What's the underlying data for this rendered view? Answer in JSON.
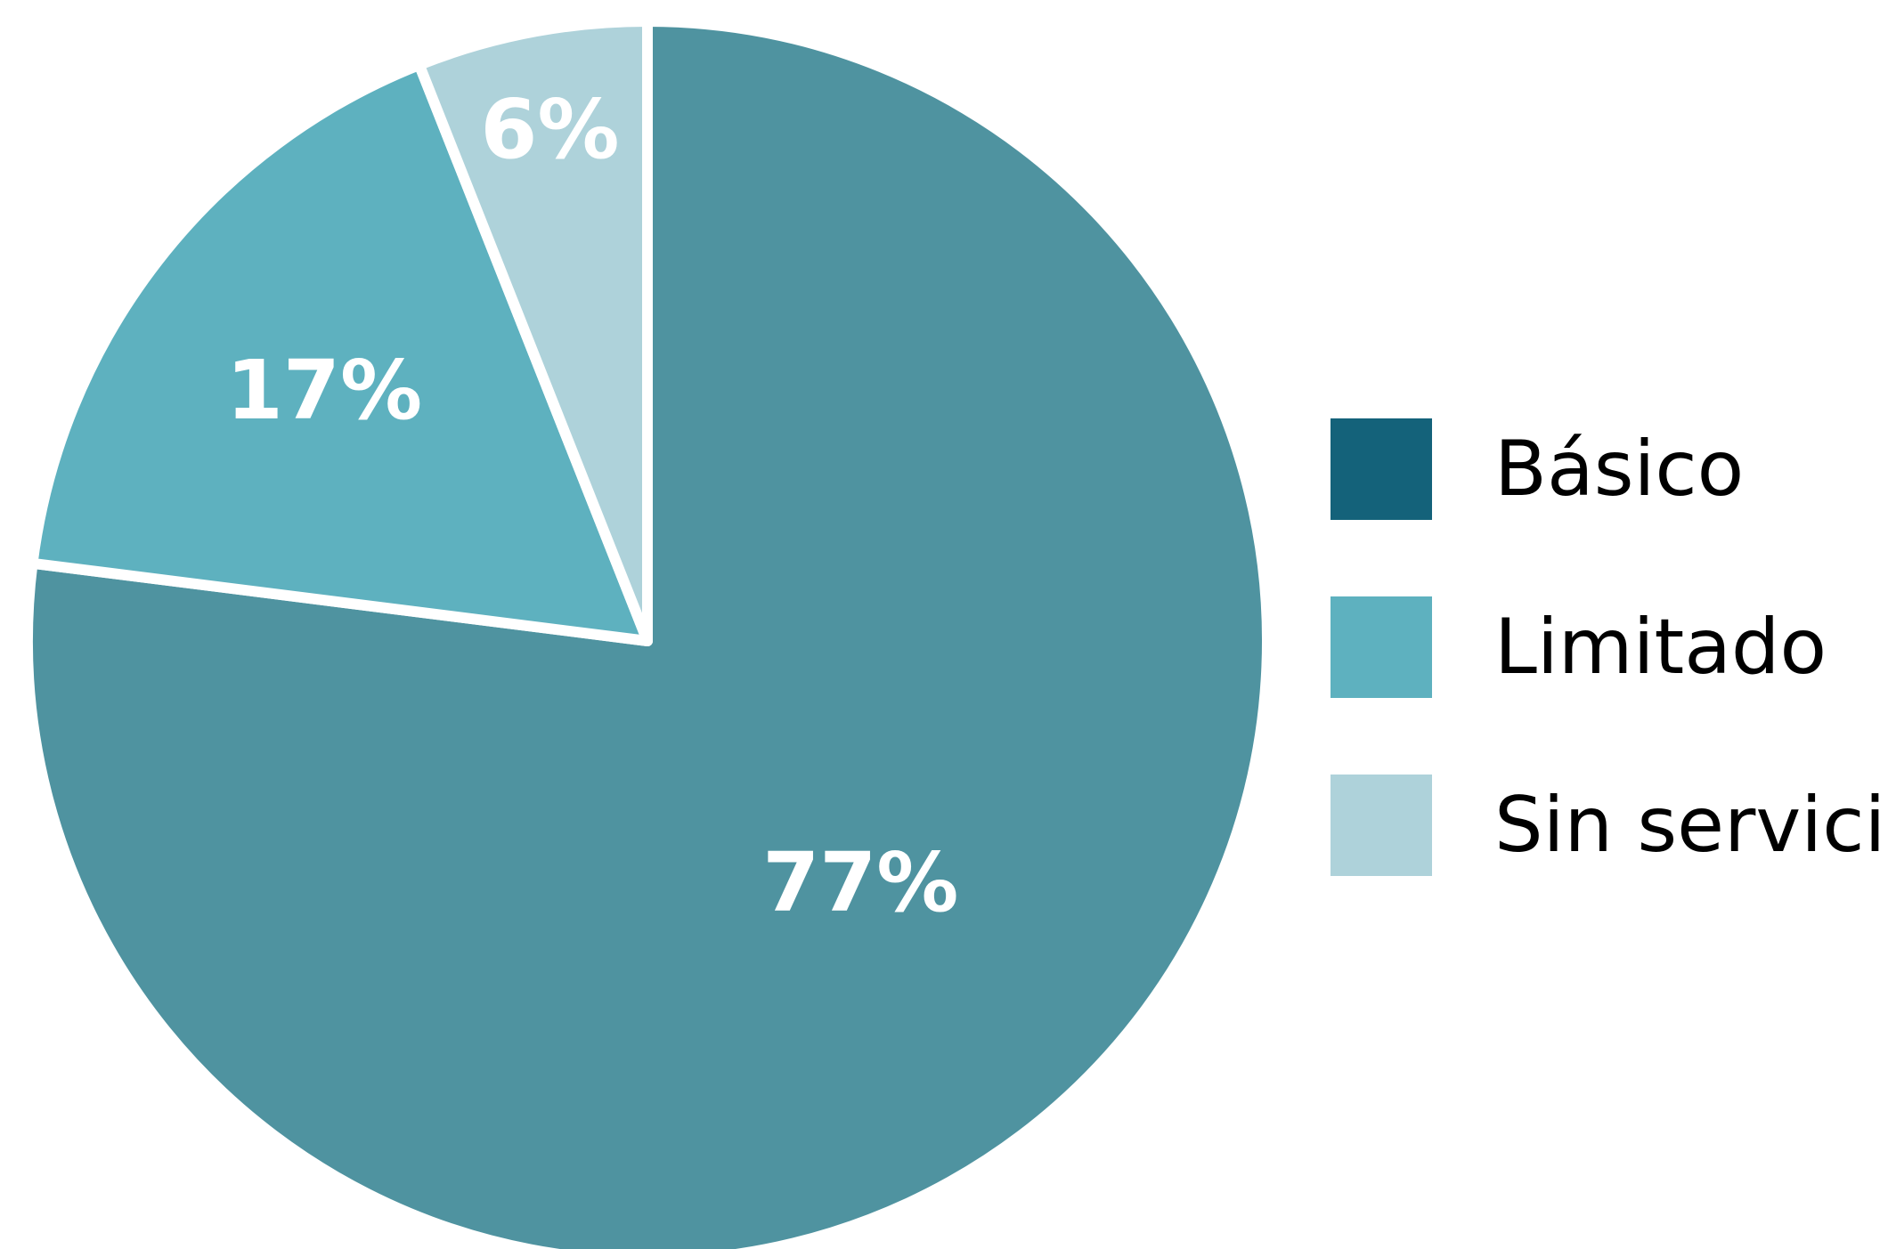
{
  "chart_data": {
    "type": "pie",
    "title": "",
    "start_angle_deg": 0,
    "direction": "counterclockwise",
    "legend_position": "right",
    "slices": [
      {
        "label": "Básico",
        "value": 77,
        "display": "77%",
        "color": "#4F93A0",
        "legend_color": "#14627A"
      },
      {
        "label": "Limitado",
        "value": 17,
        "display": "17%",
        "color": "#5EB1BF",
        "legend_color": "#5EB1BF"
      },
      {
        "label": "Sin servicio",
        "value": 6,
        "display": "6%",
        "color": "#AED2DA",
        "legend_color": "#AED2DA"
      }
    ]
  }
}
